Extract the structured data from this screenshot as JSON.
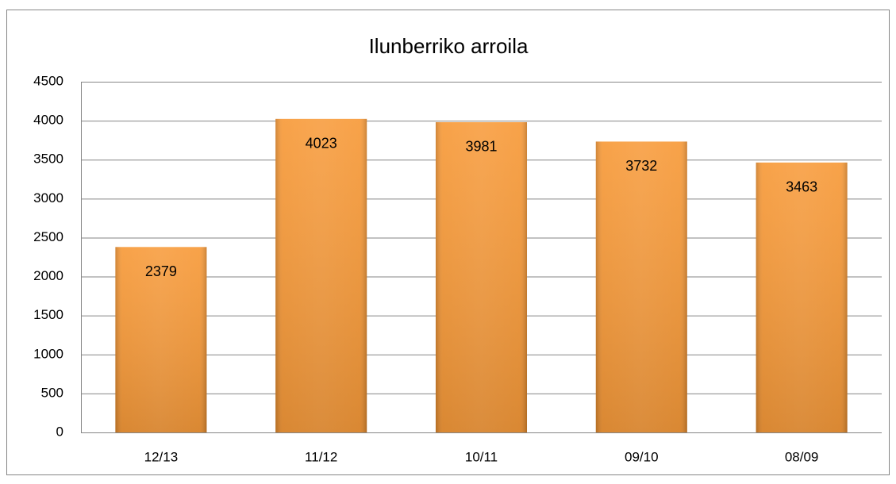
{
  "chart_data": {
    "type": "bar",
    "title": "Ilunberriko arroila",
    "categories": [
      "12/13",
      "11/12",
      "10/11",
      "09/10",
      "08/09"
    ],
    "values": [
      2379,
      4023,
      3981,
      3732,
      3463
    ],
    "color": "#f7952f",
    "ylim": [
      0,
      4500
    ],
    "yticks": [
      0,
      500,
      1000,
      1500,
      2000,
      2500,
      3000,
      3500,
      4000,
      4500
    ],
    "grid": true
  }
}
